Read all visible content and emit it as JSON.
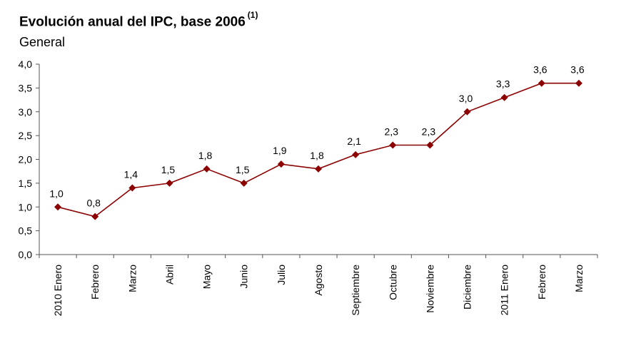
{
  "chart_data": {
    "type": "line",
    "title": "Evolución anual del IPC, base 2006",
    "title_note": "(1)",
    "subtitle": "General",
    "categories": [
      "2010 Enero",
      "Febrero",
      "Marzo",
      "Abril",
      "Mayo",
      "Junio",
      "Julio",
      "Agosto",
      "Septiembre",
      "Octubre",
      "Noviembre",
      "Diciembre",
      "2011 Enero",
      "Febrero",
      "Marzo"
    ],
    "values": [
      1.0,
      0.8,
      1.4,
      1.5,
      1.8,
      1.5,
      1.9,
      1.8,
      2.1,
      2.3,
      2.3,
      3.0,
      3.3,
      3.6,
      3.6
    ],
    "data_labels": [
      "1,0",
      "0,8",
      "1,4",
      "1,5",
      "1,8",
      "1,5",
      "1,9",
      "1,8",
      "2,1",
      "2,3",
      "2,3",
      "3,0",
      "3,3",
      "3,6",
      "3,6"
    ],
    "ylim": [
      0,
      4
    ],
    "yticks": [
      0,
      0.5,
      1.0,
      1.5,
      2.0,
      2.5,
      3.0,
      3.5,
      4.0
    ],
    "ytick_labels": [
      "0,0",
      "0,5",
      "1,0",
      "1,5",
      "2,0",
      "2,5",
      "3,0",
      "3,5",
      "4,0"
    ],
    "xlabel": "",
    "ylabel": "",
    "grid": false,
    "legend": "none",
    "line_color": "#8b0000",
    "marker": "diamond"
  }
}
